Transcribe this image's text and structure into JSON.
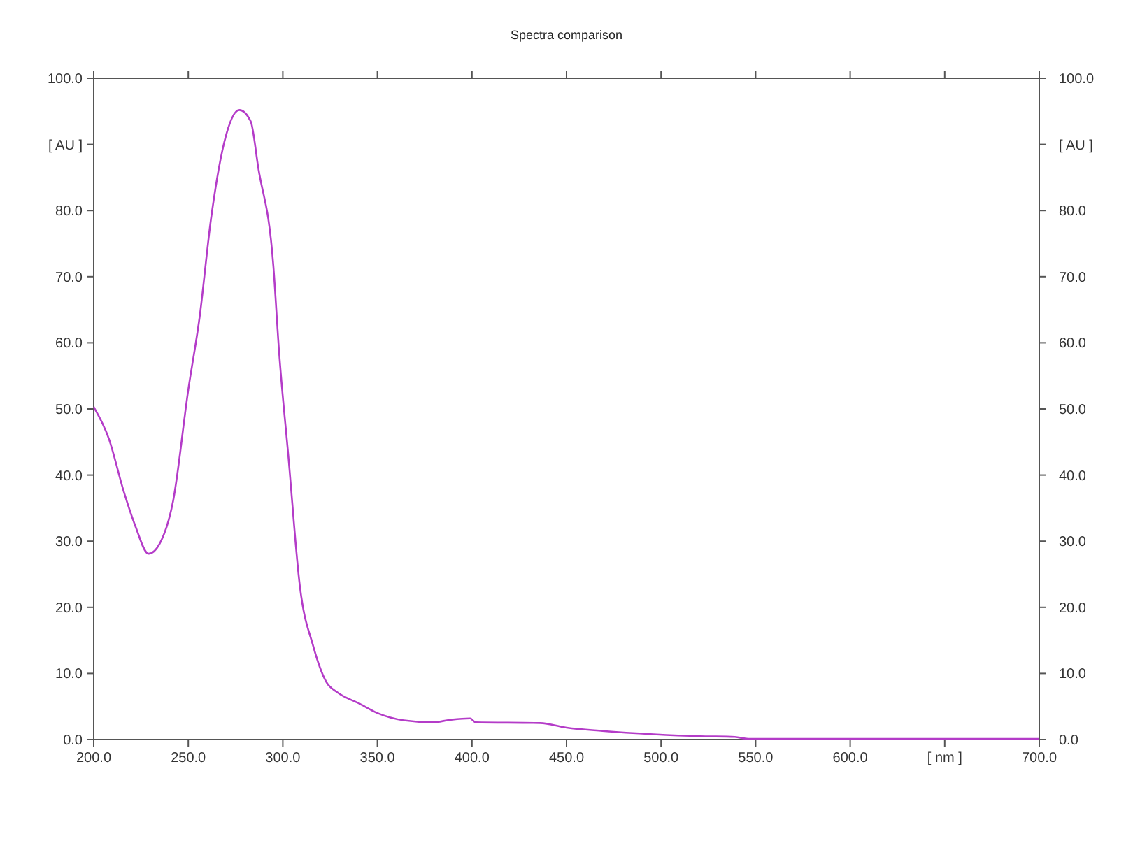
{
  "chart_data": {
    "type": "line",
    "title": "Spectra comparison",
    "x": [
      200,
      208,
      216,
      222,
      229,
      235,
      242,
      250,
      256,
      262,
      269,
      277,
      283,
      287,
      295,
      298,
      303,
      309,
      316,
      323,
      329,
      340,
      350,
      364,
      379,
      389,
      399,
      402,
      436,
      450,
      469,
      496,
      521,
      539,
      546,
      614,
      700
    ],
    "series": [
      {
        "color": "#b43cc8",
        "values": [
          50.3,
          45.5,
          37.4,
          32.3,
          28.1,
          29.7,
          36.1,
          52.9,
          63.9,
          78.7,
          90.3,
          95.2,
          93.5,
          86.5,
          71.6,
          58.7,
          42.6,
          23.2,
          14.2,
          8.7,
          7.1,
          5.5,
          4.0,
          2.9,
          2.6,
          3.0,
          3.2,
          2.6,
          2.5,
          1.8,
          1.3,
          0.8,
          0.5,
          0.4,
          0.1,
          0.1,
          0.1
        ]
      }
    ],
    "xlim": [
      200,
      700
    ],
    "xticks": [
      {
        "value": 200,
        "label": "200.0"
      },
      {
        "value": 250,
        "label": "250.0"
      },
      {
        "value": 300,
        "label": "300.0"
      },
      {
        "value": 350,
        "label": "350.0"
      },
      {
        "value": 400,
        "label": "400.0"
      },
      {
        "value": 450,
        "label": "450.0"
      },
      {
        "value": 500,
        "label": "500.0"
      },
      {
        "value": 550,
        "label": "550.0"
      },
      {
        "value": 600,
        "label": "600.0"
      },
      {
        "value": 650,
        "label": "[ nm ]"
      },
      {
        "value": 700,
        "label": "700.0"
      }
    ],
    "ylim": [
      0,
      100
    ],
    "yticks": [
      {
        "value": 0,
        "label": "0.0"
      },
      {
        "value": 10,
        "label": "10.0"
      },
      {
        "value": 20,
        "label": "20.0"
      },
      {
        "value": 30,
        "label": "30.0"
      },
      {
        "value": 40,
        "label": "40.0"
      },
      {
        "value": 50,
        "label": "50.0"
      },
      {
        "value": 60,
        "label": "60.0"
      },
      {
        "value": 70,
        "label": "70.0"
      },
      {
        "value": 80,
        "label": "80.0"
      },
      {
        "value": 90,
        "label": "[ AU ]"
      },
      {
        "value": 100,
        "label": "100.0"
      }
    ],
    "y2lim": [
      0,
      100
    ],
    "y2ticks": [
      {
        "value": 0,
        "label": "0.0"
      },
      {
        "value": 10,
        "label": "10.0"
      },
      {
        "value": 20,
        "label": "20.0"
      },
      {
        "value": 30,
        "label": "30.0"
      },
      {
        "value": 40,
        "label": "40.0"
      },
      {
        "value": 50,
        "label": "50.0"
      },
      {
        "value": 60,
        "label": "60.0"
      },
      {
        "value": 70,
        "label": "70.0"
      },
      {
        "value": 80,
        "label": "80.0"
      },
      {
        "value": 90,
        "label": "[ AU ]"
      },
      {
        "value": 100,
        "label": "100.0"
      }
    ],
    "grid": false,
    "marker": "none",
    "line_style": "solid"
  }
}
